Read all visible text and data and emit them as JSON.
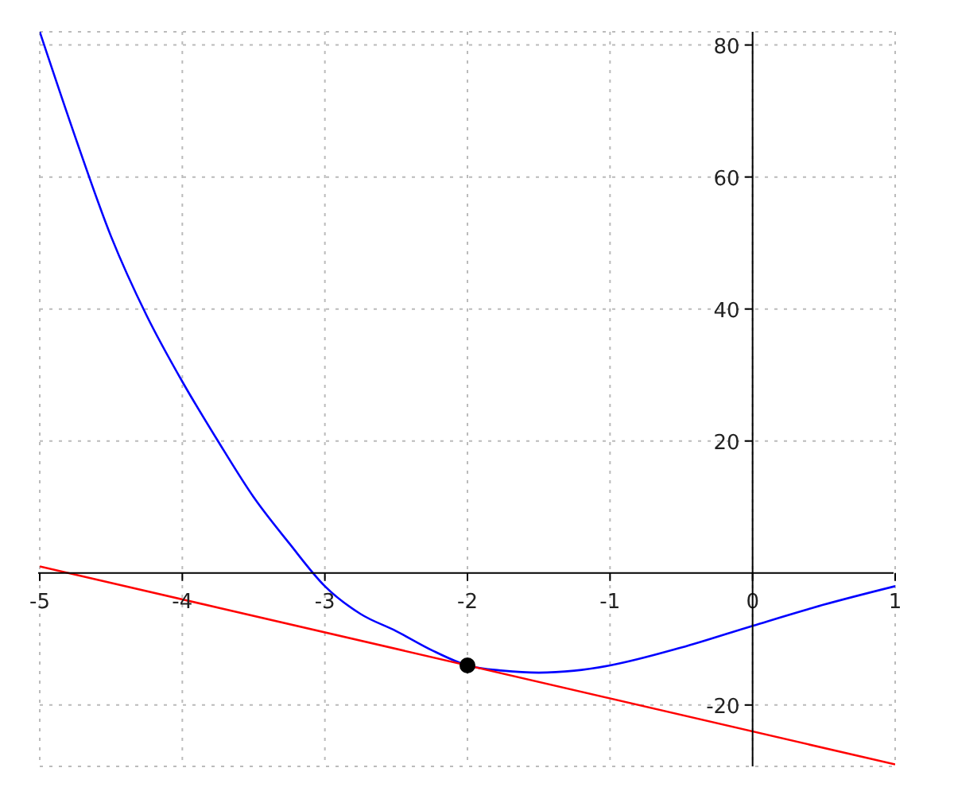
{
  "chart_data": {
    "type": "line",
    "xlim": [
      -5,
      1
    ],
    "ylim": [
      -29.3,
      82
    ],
    "xticks": [
      -5,
      -4,
      -3,
      -2,
      -1,
      0,
      1
    ],
    "yticks": [
      -20,
      20,
      40,
      60,
      80
    ],
    "grid": true,
    "series": [
      {
        "color": "#0000ff",
        "marker": "none",
        "x": [
          -5,
          -4.75,
          -4.5,
          -4.25,
          -4,
          -3.75,
          -3.5,
          -3.25,
          -3,
          -2.75,
          -2.5,
          -2.25,
          -2,
          -1.75,
          -1.5,
          -1.25,
          -1,
          -0.5,
          0,
          0.5,
          1
        ],
        "values": [
          82,
          66,
          51,
          39,
          29,
          20,
          11.5,
          4.5,
          -2,
          -6.2,
          -8.8,
          -11.7,
          -14,
          -14.8,
          -15.1,
          -14.8,
          -14,
          -11.3,
          -8,
          -4.8,
          -2
        ]
      },
      {
        "type": "line",
        "color": "#ff0000",
        "marker": "none",
        "x": [
          -5,
          1
        ],
        "values": [
          1,
          -29
        ]
      },
      {
        "type": "scatter",
        "color": "#000000",
        "marker": "circle",
        "x": [
          -2
        ],
        "values": [
          -14
        ]
      }
    ]
  }
}
